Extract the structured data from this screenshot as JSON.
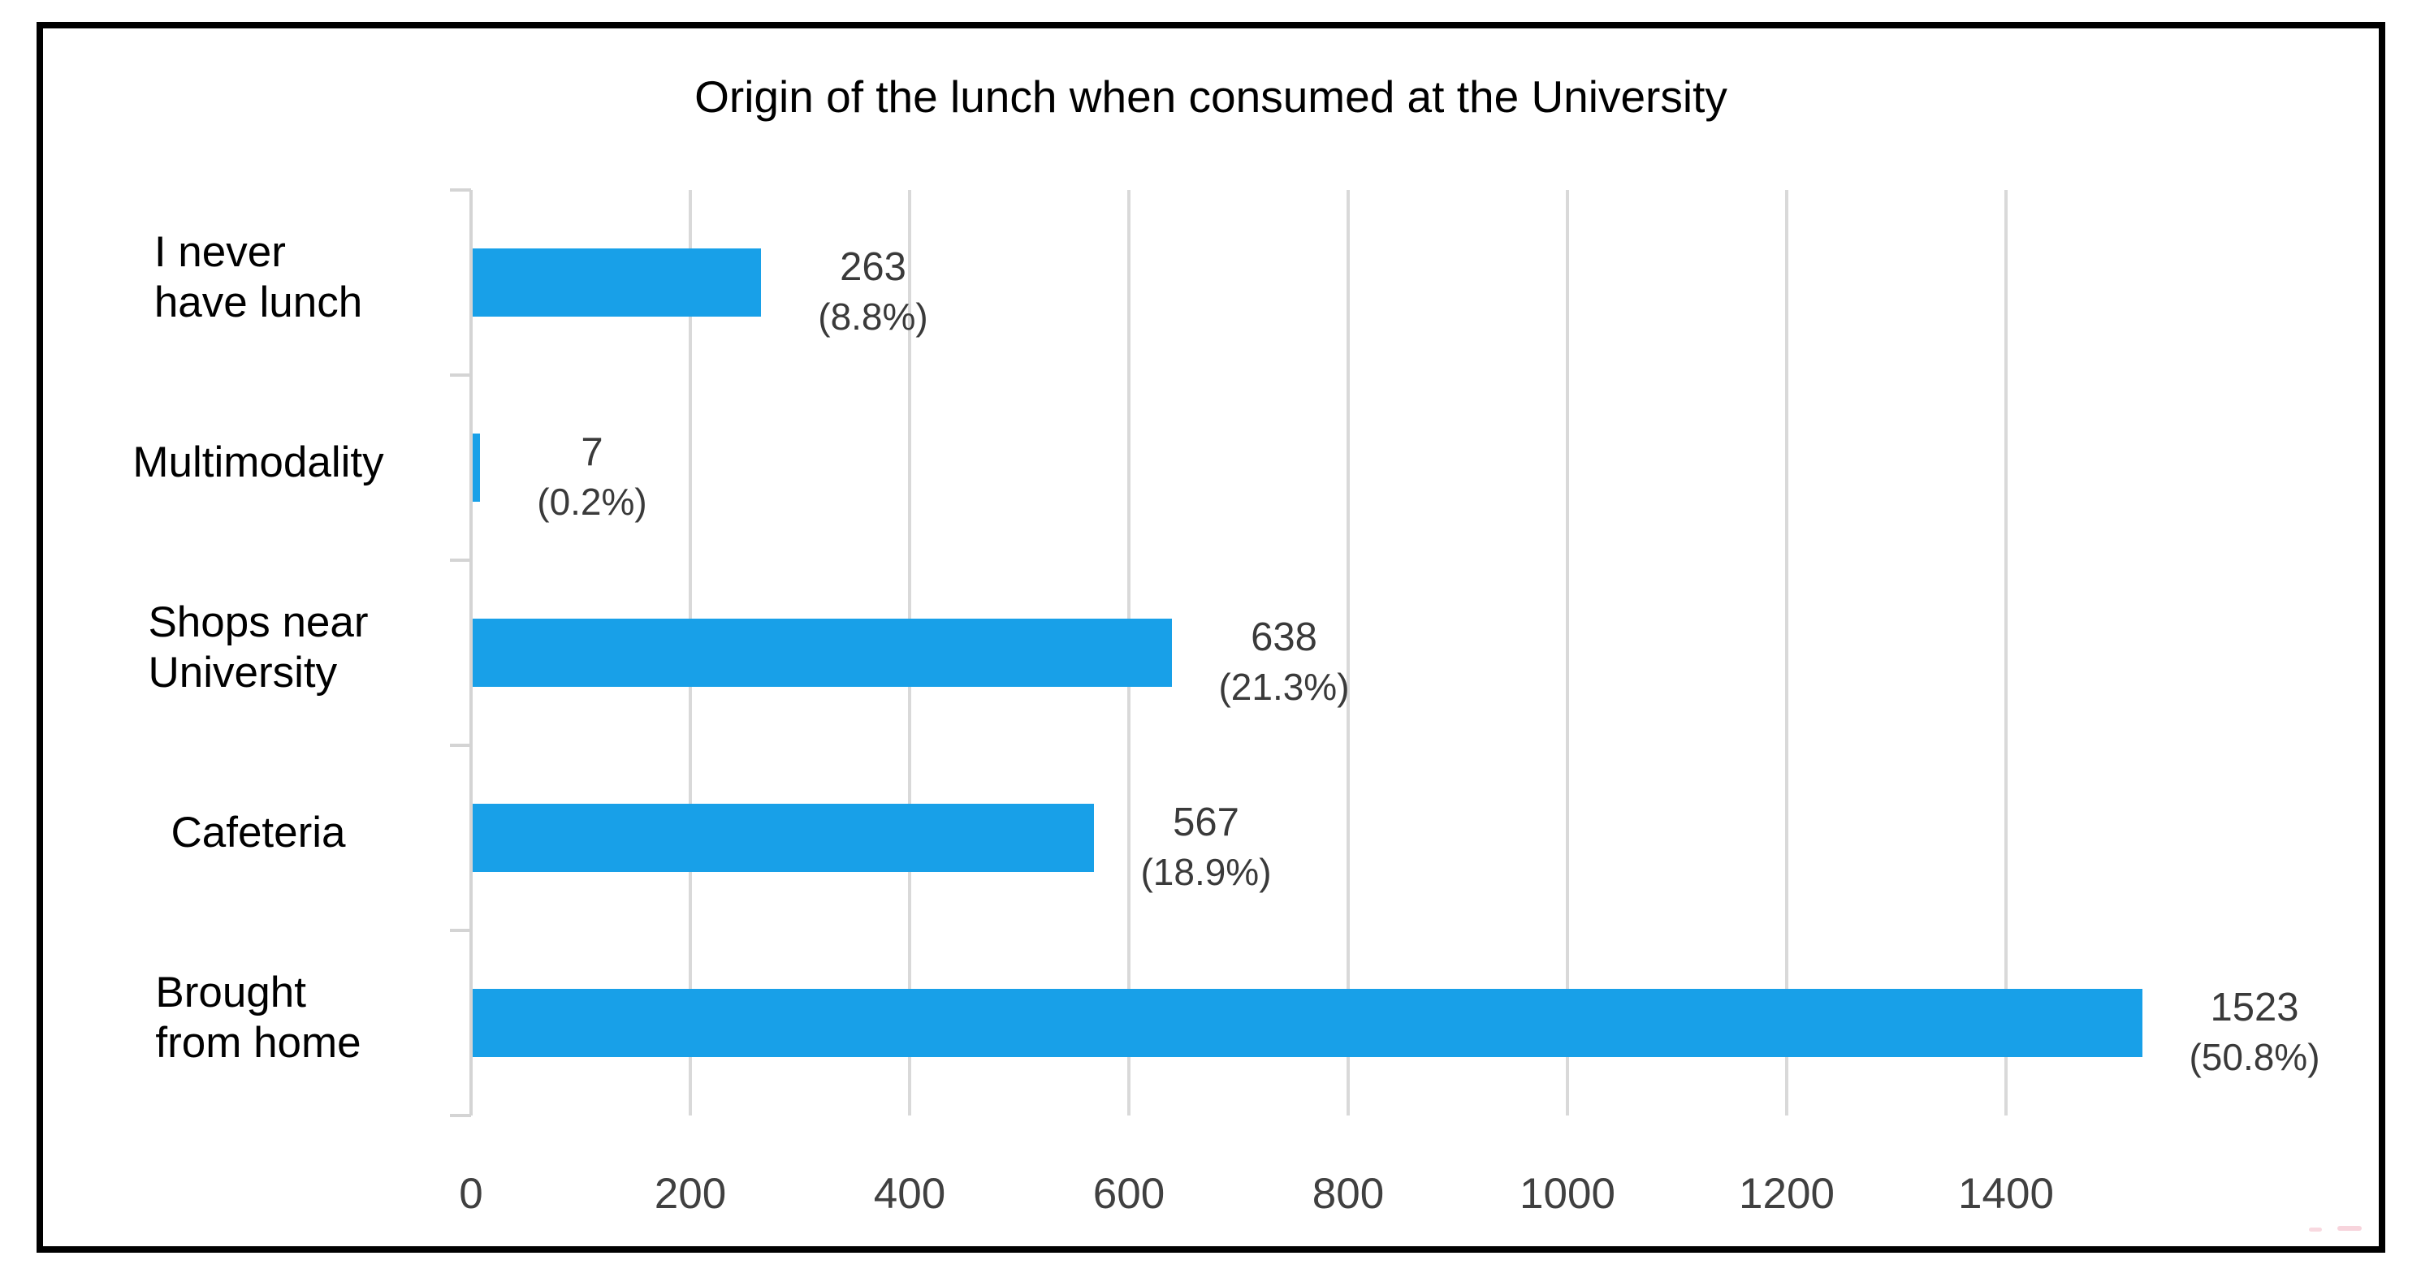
{
  "chart_data": {
    "type": "bar",
    "orientation": "horizontal",
    "title": "Origin of the lunch when consumed at the University",
    "categories": [
      "I never have lunch",
      "Multimodality",
      "Shops near University",
      "Cafeteria",
      "Brought from home"
    ],
    "category_lines": [
      [
        "I never",
        "have lunch"
      ],
      [
        "Multimodality"
      ],
      [
        "Shops near",
        "University"
      ],
      [
        "Cafeteria"
      ],
      [
        "Brought",
        "from home"
      ]
    ],
    "values": [
      263,
      7,
      638,
      567,
      1523
    ],
    "value_labels": [
      "263",
      "7",
      "638",
      "567",
      "1523"
    ],
    "percent_labels": [
      "(8.8%)",
      "(0.2%)",
      "(21.3%)",
      "(18.9%)",
      "(50.8%)"
    ],
    "x_ticks": [
      "0",
      "200",
      "400",
      "600",
      "800",
      "1000",
      "1200",
      "1400"
    ],
    "x_tick_values": [
      0,
      200,
      400,
      600,
      800,
      1000,
      1200,
      1400
    ],
    "xlim": [
      0,
      1600
    ],
    "grid": true,
    "legend": false,
    "xlabel": "",
    "ylabel": "",
    "colors": {
      "bar": "#18A0E8",
      "grid": "#D9D9D9",
      "axis": "#D4D4D4",
      "tick_label": "#404040",
      "value_label": "#3a3a3a",
      "category_label": "#000000",
      "title": "#000000",
      "frame_border": "#000000",
      "background": "#ffffff",
      "artifact_pink": "#f6ccd6"
    }
  }
}
